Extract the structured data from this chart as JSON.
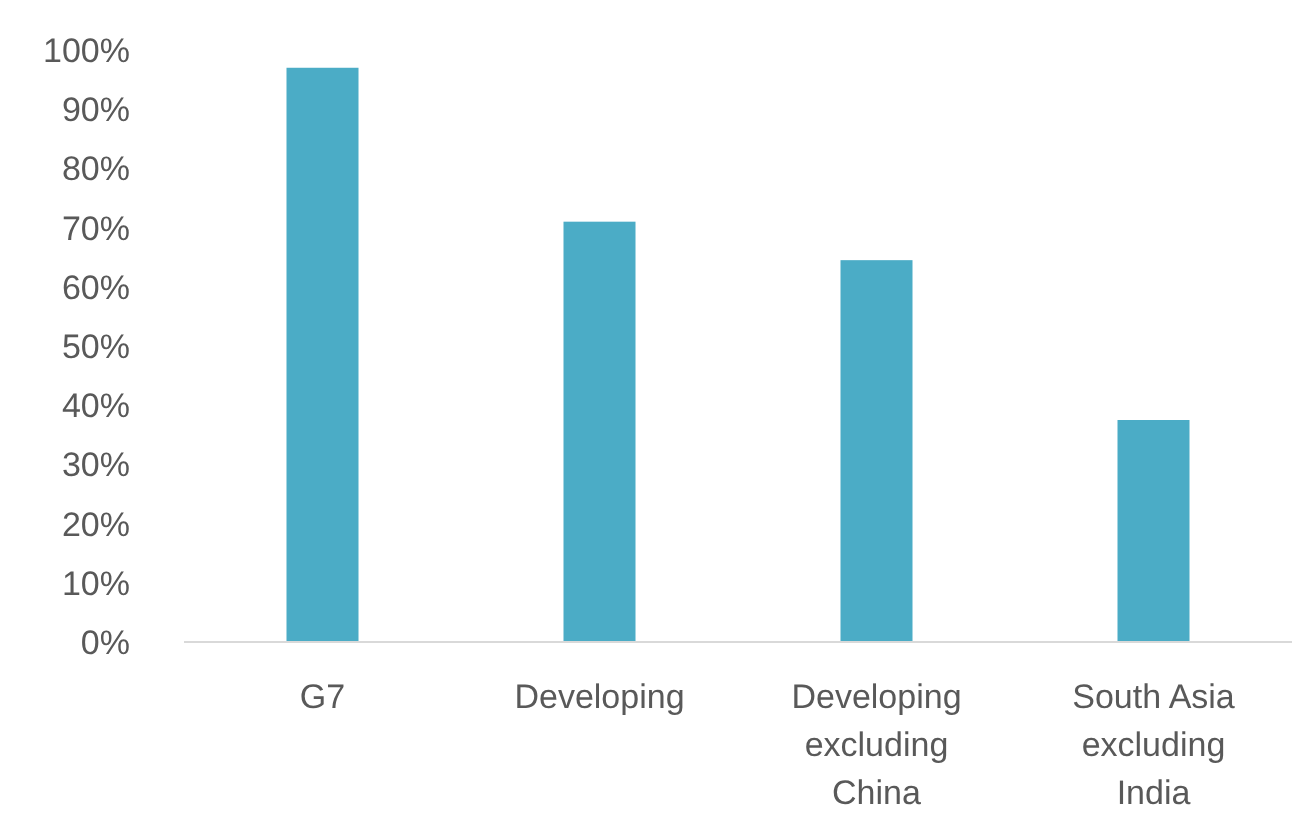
{
  "chart_data": {
    "type": "bar",
    "categories": [
      "G7",
      "Developing",
      "Developing excluding China",
      "South Asia excluding India"
    ],
    "values": [
      97,
      71,
      64.5,
      37.5
    ],
    "color": "#4bacc6",
    "ylim": [
      0,
      100
    ],
    "yticks": [
      {
        "value": 0,
        "label": "0%"
      },
      {
        "value": 10,
        "label": "10%"
      },
      {
        "value": 20,
        "label": "20%"
      },
      {
        "value": 30,
        "label": "30%"
      },
      {
        "value": 40,
        "label": "40%"
      },
      {
        "value": 50,
        "label": "50%"
      },
      {
        "value": 60,
        "label": "60%"
      },
      {
        "value": 70,
        "label": "70%"
      },
      {
        "value": 80,
        "label": "80%"
      },
      {
        "value": 90,
        "label": "90%"
      },
      {
        "value": 100,
        "label": "100%"
      }
    ],
    "grid": false
  }
}
